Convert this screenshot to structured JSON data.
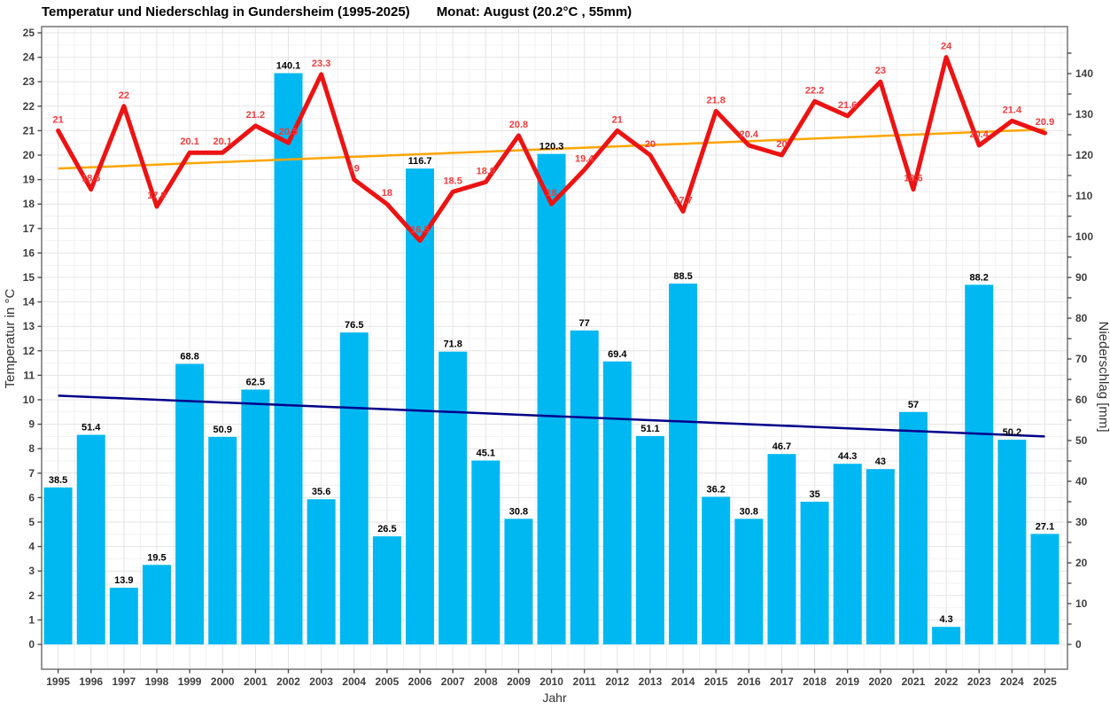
{
  "chart_data": {
    "type": "bar",
    "title": "Temperatur und Niederschlag in Gundersheim (1995-2025)",
    "subtitle": "Monat: August (20.2°C , 55mm)",
    "xlabel": "Jahr",
    "ylabel_left": "Temperatur in °C",
    "ylabel_right": "Niederschlag [mm]",
    "categories": [
      1995,
      1996,
      1997,
      1998,
      1999,
      2000,
      2001,
      2002,
      2003,
      2004,
      2005,
      2006,
      2007,
      2008,
      2009,
      2010,
      2011,
      2012,
      2013,
      2014,
      2015,
      2016,
      2017,
      2018,
      2019,
      2020,
      2021,
      2022,
      2023,
      2024,
      2025
    ],
    "series": [
      {
        "name": "Temperatur",
        "type": "line",
        "axis": "left",
        "color": "#ec1313",
        "label_color": "#f03c3c",
        "values": [
          21,
          18.6,
          22,
          17.9,
          20.1,
          20.1,
          21.2,
          20.5,
          23.3,
          19,
          18,
          16.5,
          18.5,
          18.9,
          20.8,
          18,
          19.4,
          21,
          20,
          17.7,
          21.8,
          20.4,
          20,
          22.2,
          21.6,
          23,
          18.6,
          24,
          20.4,
          21.4,
          20.9
        ]
      },
      {
        "name": "Niederschlag",
        "type": "bar",
        "axis": "right",
        "color": "#00b8f1",
        "label_color": "#000000",
        "values": [
          38.5,
          51.4,
          13.9,
          19.5,
          68.8,
          50.9,
          62.5,
          140.1,
          35.6,
          76.5,
          26.5,
          116.7,
          71.8,
          45.1,
          30.8,
          120.3,
          77,
          69.4,
          51.1,
          88.5,
          36.2,
          30.8,
          46.7,
          35,
          44.3,
          43,
          57,
          4.3,
          88.2,
          50.2,
          27.1
        ]
      },
      {
        "name": "Trend Temperatur",
        "type": "trendline",
        "axis": "left",
        "color": "#ffa500",
        "start": 19.45,
        "end": 21.05
      },
      {
        "name": "Trend Niederschlag",
        "type": "trendline",
        "axis": "right",
        "color": "#00008b",
        "start": 61,
        "end": 51
      }
    ],
    "ylim_left": [
      0,
      25
    ],
    "ylim_right": [
      0,
      150
    ],
    "ytick_step_left": 1,
    "ytick_label_step_right": 10,
    "ytick_minor_step_right": 5,
    "grid": true,
    "legend": "none",
    "colors": {
      "grid_major": "#e4e4e4",
      "grid_minor": "#f2f2f2",
      "plot_border": "#737373",
      "tick": "#4d4d4d",
      "tick_label": "#3f3f3f",
      "axis_title": "#333333"
    }
  }
}
